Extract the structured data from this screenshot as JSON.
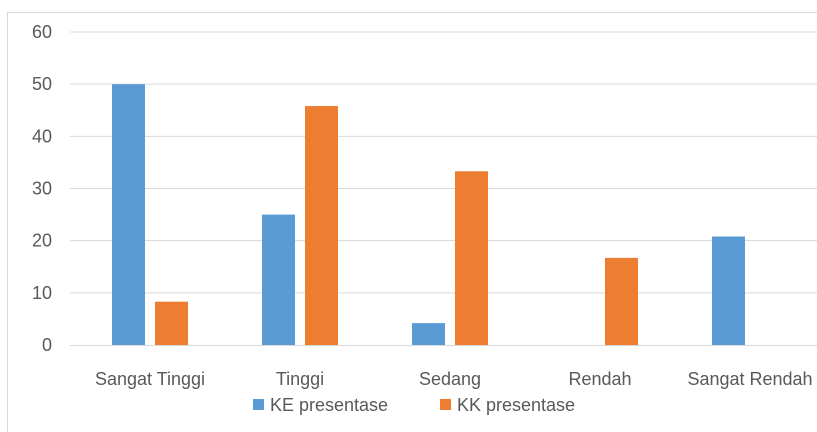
{
  "chart_data": {
    "type": "bar",
    "title": "",
    "xlabel": "",
    "ylabel": "",
    "categories": [
      "Sangat Tinggi",
      "Tinggi",
      "Sedang",
      "Rendah",
      "Sangat Rendah"
    ],
    "series": [
      {
        "name": "KE presentase",
        "color": "#5b9bd5",
        "values": [
          50,
          25,
          4.2,
          0,
          20.8
        ]
      },
      {
        "name": "KK presentase",
        "color": "#ed7d31",
        "values": [
          8.3,
          45.8,
          33.3,
          16.7,
          0
        ]
      }
    ],
    "ylim": [
      0,
      60
    ],
    "yticks": [
      "0",
      "10",
      "20",
      "30",
      "40",
      "50",
      "60"
    ],
    "grid": true,
    "legend": "bottom"
  }
}
